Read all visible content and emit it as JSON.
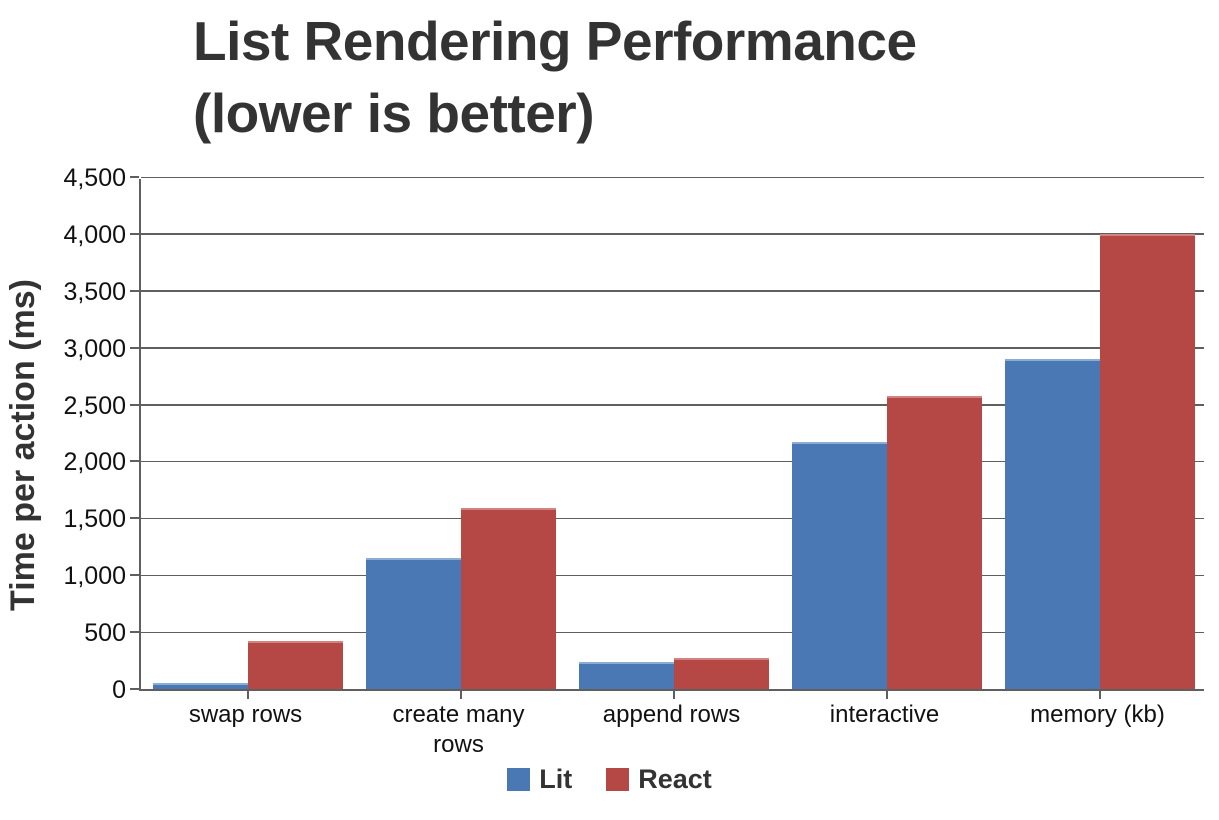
{
  "chart_data": {
    "type": "bar",
    "title": "List Rendering Performance (lower is better)",
    "title_lines": [
      "List Rendering Performance",
      "(lower is better)"
    ],
    "ylabel": "Time per action (ms)",
    "xlabel": "",
    "categories": [
      "swap rows",
      "create many rows",
      "append rows",
      "interactive",
      "memory (kb)"
    ],
    "series": [
      {
        "name": "Lit",
        "color": "#4a78b4",
        "highlight": "#8cadd3",
        "values": [
          50,
          1150,
          240,
          2175,
          2900
        ]
      },
      {
        "name": "React",
        "color": "#b54845",
        "highlight": "#d2827f",
        "values": [
          420,
          1595,
          270,
          2575,
          4000
        ]
      }
    ],
    "ylim": [
      0,
      4500
    ],
    "ytick_step": 500,
    "ytick_labels": [
      "0",
      "500",
      "1,000",
      "1,500",
      "2,000",
      "2,500",
      "3,000",
      "3,500",
      "4,000",
      "4,500"
    ],
    "grid": true,
    "legend_position": "bottom"
  },
  "colors": {
    "grid": "#5f5f5f",
    "axis": "#5f5f5f",
    "title_text": "#333333",
    "tick_text": "#111111"
  }
}
